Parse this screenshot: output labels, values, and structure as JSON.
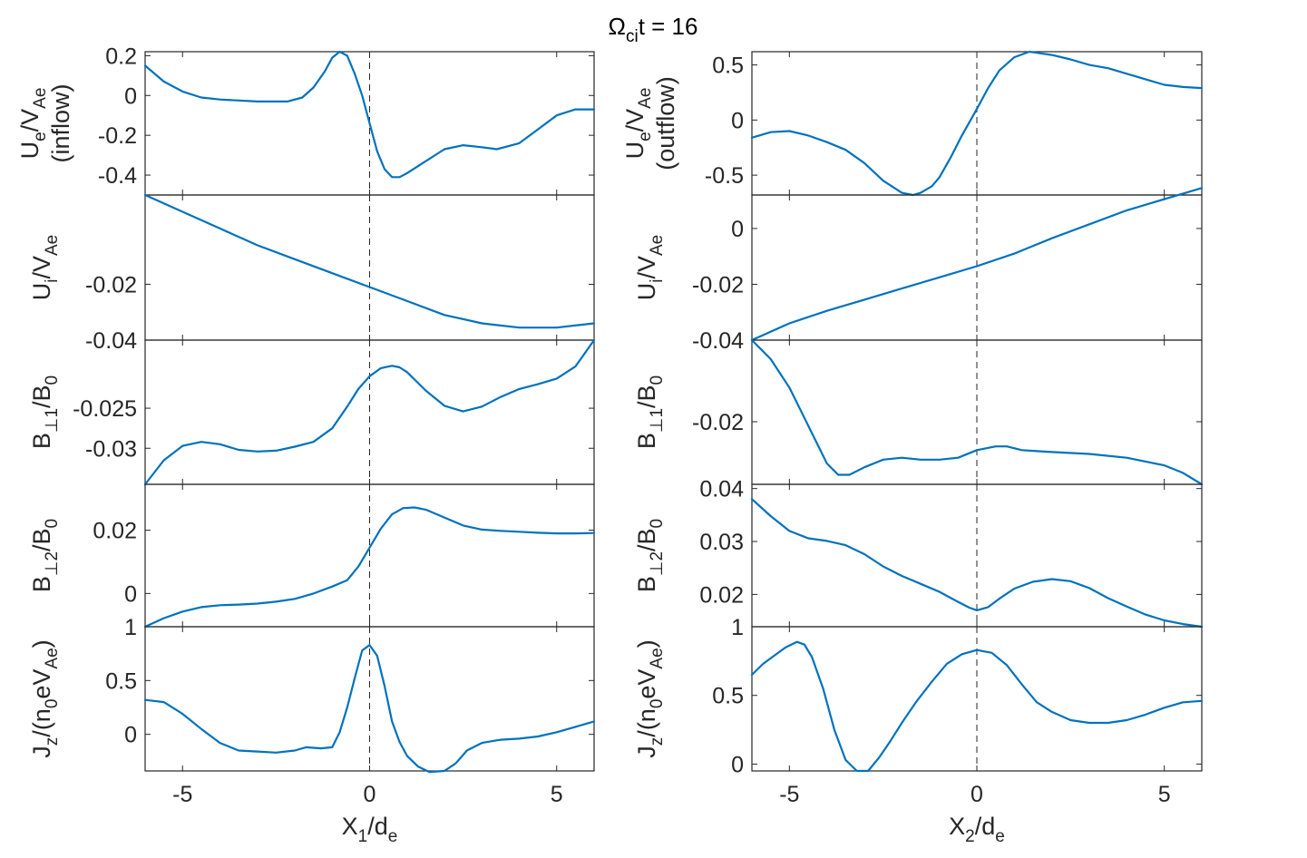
{
  "title": {
    "main": "Ω",
    "sub": "ci",
    "rest": "t = 16"
  },
  "chart_data": [
    {
      "type": "line",
      "column": "left",
      "row": 0,
      "ylabel": {
        "line1_parts": [
          "U",
          "e",
          "/V",
          "Ae"
        ],
        "line2": "(inflow)"
      },
      "xlim": [
        -6,
        6
      ],
      "ylim": [
        -0.5,
        0.22
      ],
      "yticks": [
        0.2,
        0,
        -0.2,
        -0.4
      ],
      "ytick_labels": [
        "0.2",
        "0",
        "-0.2",
        "-0.4"
      ],
      "vline_x": 0,
      "series": [
        {
          "color": "#0072BD",
          "x": [
            -6,
            -5.5,
            -5,
            -4.5,
            -4,
            -3,
            -2.2,
            -1.8,
            -1.5,
            -1.2,
            -1,
            -0.8,
            -0.6,
            -0.4,
            -0.2,
            0,
            0.2,
            0.4,
            0.6,
            0.8,
            1,
            1.5,
            2,
            2.5,
            3,
            3.4,
            4,
            4.5,
            5,
            5.5,
            6
          ],
          "y": [
            0.15,
            0.07,
            0.02,
            -0.01,
            -0.02,
            -0.03,
            -0.03,
            -0.01,
            0.04,
            0.12,
            0.19,
            0.22,
            0.2,
            0.11,
            0.0,
            -0.14,
            -0.28,
            -0.37,
            -0.41,
            -0.41,
            -0.39,
            -0.33,
            -0.27,
            -0.25,
            -0.26,
            -0.27,
            -0.24,
            -0.17,
            -0.1,
            -0.07,
            -0.07
          ]
        }
      ]
    },
    {
      "type": "line",
      "column": "right",
      "row": 0,
      "ylabel": {
        "line1_parts": [
          "U",
          "e",
          "/V",
          "Ae"
        ],
        "line2": "(outflow)"
      },
      "xlim": [
        -6,
        6
      ],
      "ylim": [
        -0.68,
        0.62
      ],
      "yticks": [
        0.5,
        0,
        -0.5
      ],
      "ytick_labels": [
        "0.5",
        "0",
        "-0.5"
      ],
      "vline_x": 0,
      "series": [
        {
          "color": "#0072BD",
          "x": [
            -6,
            -5.5,
            -5,
            -4.5,
            -4,
            -3.5,
            -3,
            -2.5,
            -2,
            -1.7,
            -1.5,
            -1.2,
            -1,
            -0.7,
            -0.4,
            0,
            0.3,
            0.6,
            1,
            1.4,
            2,
            2.5,
            3,
            3.5,
            4,
            4.5,
            5,
            5.5,
            6
          ],
          "y": [
            -0.16,
            -0.11,
            -0.1,
            -0.14,
            -0.2,
            -0.27,
            -0.39,
            -0.55,
            -0.66,
            -0.68,
            -0.66,
            -0.6,
            -0.52,
            -0.34,
            -0.14,
            0.1,
            0.29,
            0.45,
            0.57,
            0.62,
            0.59,
            0.55,
            0.5,
            0.47,
            0.42,
            0.37,
            0.32,
            0.3,
            0.29
          ]
        }
      ]
    },
    {
      "type": "line",
      "column": "left",
      "row": 1,
      "ylabel": {
        "line1_parts": [
          "U",
          "i",
          "/V",
          "Ae"
        ]
      },
      "xlim": [
        -6,
        6
      ],
      "ylim": [
        -0.04,
        0.012
      ],
      "yticks": [
        -0.02,
        -0.04
      ],
      "ytick_labels": [
        "-0.02",
        "-0.04"
      ],
      "vline_x": 0,
      "series": [
        {
          "color": "#0072BD",
          "x": [
            -6,
            -5,
            -4,
            -3,
            -2,
            -1,
            0,
            1,
            2,
            3,
            4,
            5,
            6
          ],
          "y": [
            0.012,
            0.006,
            0.0,
            -0.006,
            -0.011,
            -0.016,
            -0.021,
            -0.026,
            -0.031,
            -0.034,
            -0.0355,
            -0.0355,
            -0.034
          ]
        }
      ]
    },
    {
      "type": "line",
      "column": "right",
      "row": 1,
      "ylabel": {
        "line1_parts": [
          "U",
          "i",
          "/V",
          "Ae"
        ]
      },
      "xlim": [
        -6,
        6
      ],
      "ylim": [
        -0.04,
        0.012
      ],
      "yticks": [
        0,
        -0.02,
        -0.04
      ],
      "ytick_labels": [
        "0",
        "-0.02",
        "-0.04"
      ],
      "vline_x": 0,
      "series": [
        {
          "color": "#0072BD",
          "x": [
            -6,
            -5,
            -4,
            -3,
            -2,
            -1,
            0,
            1,
            2,
            3,
            4,
            5,
            6
          ],
          "y": [
            -0.04,
            -0.034,
            -0.0295,
            -0.0255,
            -0.0215,
            -0.0175,
            -0.0135,
            -0.009,
            -0.0035,
            0.0015,
            0.0065,
            0.0105,
            0.0145
          ]
        }
      ]
    },
    {
      "type": "line",
      "column": "left",
      "row": 2,
      "ylabel": {
        "line1_parts": [
          "B",
          "⊥1",
          "/B",
          "0"
        ]
      },
      "xlim": [
        -6,
        6
      ],
      "ylim": [
        -0.0345,
        -0.0165
      ],
      "yticks": [
        -0.025,
        -0.03
      ],
      "ytick_labels": [
        "-0.025",
        "-0.03"
      ],
      "vline_x": 0,
      "series": [
        {
          "color": "#0072BD",
          "x": [
            -6,
            -5.5,
            -5,
            -4.5,
            -4,
            -3.5,
            -3,
            -2.5,
            -2,
            -1.5,
            -1,
            -0.6,
            -0.3,
            0,
            0.3,
            0.6,
            0.8,
            1,
            1.5,
            2,
            2.5,
            3,
            3.5,
            4,
            4.5,
            5,
            5.5,
            6
          ],
          "y": [
            -0.0345,
            -0.0315,
            -0.0297,
            -0.0292,
            -0.0295,
            -0.0302,
            -0.0304,
            -0.0303,
            -0.0298,
            -0.0292,
            -0.0275,
            -0.0248,
            -0.0226,
            -0.021,
            -0.02,
            -0.0197,
            -0.0199,
            -0.0205,
            -0.0228,
            -0.0247,
            -0.0254,
            -0.0248,
            -0.0236,
            -0.0226,
            -0.022,
            -0.0213,
            -0.0198,
            -0.0165
          ]
        }
      ]
    },
    {
      "type": "line",
      "column": "right",
      "row": 2,
      "ylabel": {
        "line1_parts": [
          "B",
          "⊥1",
          "/B",
          "0"
        ]
      },
      "xlim": [
        -6,
        6
      ],
      "ylim": [
        -0.0233,
        -0.0157
      ],
      "yticks": [
        -0.02
      ],
      "ytick_labels": [
        "-0.02"
      ],
      "vline_x": 0,
      "series": [
        {
          "color": "#0072BD",
          "x": [
            -6,
            -5.5,
            -5,
            -4.5,
            -4,
            -3.7,
            -3.4,
            -3,
            -2.5,
            -2,
            -1.5,
            -1,
            -0.5,
            0,
            0.5,
            0.8,
            1.2,
            2,
            3,
            4,
            5,
            5.5,
            6
          ],
          "y": [
            -0.0157,
            -0.0167,
            -0.0182,
            -0.0202,
            -0.0222,
            -0.0228,
            -0.0228,
            -0.0224,
            -0.022,
            -0.0219,
            -0.022,
            -0.022,
            -0.0219,
            -0.0215,
            -0.0213,
            -0.0213,
            -0.0215,
            -0.0216,
            -0.0217,
            -0.0219,
            -0.0223,
            -0.0227,
            -0.0233
          ]
        }
      ]
    },
    {
      "type": "line",
      "column": "left",
      "row": 3,
      "ylabel": {
        "line1_parts": [
          "B",
          "⊥2",
          "/B",
          "0"
        ]
      },
      "xlim": [
        -6,
        6
      ],
      "ylim": [
        -0.0105,
        0.0345
      ],
      "yticks": [
        0.02,
        0
      ],
      "ytick_labels": [
        "0.02",
        "0"
      ],
      "vline_x": 0,
      "series": [
        {
          "color": "#0072BD",
          "x": [
            -6,
            -5.5,
            -5,
            -4.5,
            -4,
            -3.5,
            -3,
            -2.5,
            -2,
            -1.5,
            -1,
            -0.6,
            -0.3,
            0,
            0.3,
            0.6,
            0.9,
            1.2,
            1.5,
            2,
            2.5,
            3,
            3.5,
            4,
            4.5,
            5,
            5.5,
            6
          ],
          "y": [
            -0.0105,
            -0.0078,
            -0.0057,
            -0.0043,
            -0.0037,
            -0.0035,
            -0.0032,
            -0.0026,
            -0.0017,
            0.0,
            0.0022,
            0.0042,
            0.0085,
            0.0145,
            0.0205,
            0.025,
            0.027,
            0.0272,
            0.0265,
            0.024,
            0.0215,
            0.0202,
            0.0198,
            0.0195,
            0.0192,
            0.019,
            0.019,
            0.0191
          ]
        }
      ]
    },
    {
      "type": "line",
      "column": "right",
      "row": 3,
      "ylabel": {
        "line1_parts": [
          "B",
          "⊥2",
          "/B",
          "0"
        ]
      },
      "xlim": [
        -6,
        6
      ],
      "ylim": [
        0.0139,
        0.0408
      ],
      "yticks": [
        0.04,
        0.03,
        0.02
      ],
      "ytick_labels": [
        "0.04",
        "0.03",
        "0.02"
      ],
      "vline_x": 0,
      "series": [
        {
          "color": "#0072BD",
          "x": [
            -6,
            -5.5,
            -5,
            -4.5,
            -4,
            -3.5,
            -3,
            -2.5,
            -2,
            -1.5,
            -1,
            -0.5,
            -0.2,
            0,
            0.3,
            0.6,
            1,
            1.5,
            2,
            2.5,
            3,
            3.5,
            4,
            4.5,
            5,
            5.5,
            6
          ],
          "y": [
            0.038,
            0.0348,
            0.032,
            0.0306,
            0.0301,
            0.0293,
            0.0276,
            0.0253,
            0.0235,
            0.022,
            0.0205,
            0.0186,
            0.0175,
            0.017,
            0.0176,
            0.0192,
            0.0211,
            0.0224,
            0.0229,
            0.0225,
            0.0212,
            0.0193,
            0.0177,
            0.0162,
            0.0151,
            0.0144,
            0.0139
          ]
        }
      ]
    },
    {
      "type": "line",
      "column": "left",
      "row": 4,
      "ylabel": {
        "line1_parts": [
          "J",
          "z",
          "/(n",
          "0",
          "eV",
          "Ae",
          ")"
        ]
      },
      "xlim": [
        -6,
        6
      ],
      "ylim": [
        -0.34,
        1.0
      ],
      "yticks": [
        1,
        0.5,
        0
      ],
      "ytick_labels": [
        "1",
        "0.5",
        "0"
      ],
      "vline_x": 0,
      "series": [
        {
          "color": "#0072BD",
          "x": [
            -6,
            -5.5,
            -5,
            -4.5,
            -4,
            -3.5,
            -3,
            -2.5,
            -2,
            -1.7,
            -1.3,
            -1,
            -0.8,
            -0.6,
            -0.4,
            -0.2,
            0,
            0.2,
            0.4,
            0.6,
            0.8,
            1,
            1.3,
            1.6,
            2,
            2.3,
            2.6,
            3,
            3.5,
            4,
            4.5,
            5,
            5.5,
            6
          ],
          "y": [
            0.32,
            0.3,
            0.19,
            0.05,
            -0.08,
            -0.15,
            -0.16,
            -0.17,
            -0.15,
            -0.12,
            -0.13,
            -0.12,
            0.02,
            0.25,
            0.52,
            0.78,
            0.83,
            0.73,
            0.45,
            0.12,
            -0.07,
            -0.2,
            -0.3,
            -0.35,
            -0.34,
            -0.27,
            -0.15,
            -0.08,
            -0.05,
            -0.04,
            -0.02,
            0.02,
            0.07,
            0.12
          ]
        }
      ]
    },
    {
      "type": "line",
      "column": "right",
      "row": 4,
      "ylabel": {
        "line1_parts": [
          "J",
          "z",
          "/(n",
          "0",
          "eV",
          "Ae",
          ")"
        ]
      },
      "xlim": [
        -6,
        6
      ],
      "ylim": [
        -0.05,
        1.0
      ],
      "yticks": [
        1,
        0.5,
        0
      ],
      "ytick_labels": [
        "1",
        "0.5",
        "0"
      ],
      "vline_x": 0,
      "series": [
        {
          "color": "#0072BD",
          "x": [
            -6,
            -5.7,
            -5.4,
            -5.1,
            -4.8,
            -4.6,
            -4.4,
            -4.1,
            -3.8,
            -3.5,
            -3.2,
            -2.9,
            -2.6,
            -2.3,
            -2,
            -1.6,
            -1.2,
            -0.8,
            -0.4,
            0,
            0.4,
            0.8,
            1.2,
            1.6,
            2,
            2.5,
            3,
            3.5,
            4,
            4.5,
            5,
            5.5,
            6
          ],
          "y": [
            0.65,
            0.73,
            0.79,
            0.85,
            0.89,
            0.87,
            0.78,
            0.55,
            0.25,
            0.03,
            -0.05,
            -0.05,
            0.05,
            0.17,
            0.3,
            0.46,
            0.6,
            0.73,
            0.8,
            0.83,
            0.81,
            0.72,
            0.58,
            0.45,
            0.38,
            0.32,
            0.3,
            0.3,
            0.32,
            0.36,
            0.41,
            0.45,
            0.46
          ]
        }
      ]
    }
  ],
  "xaxes": [
    {
      "column": "left",
      "label_parts": [
        "X",
        "1",
        "/d",
        "e"
      ],
      "xticks": [
        -5,
        0,
        5
      ],
      "xtick_labels": [
        "-5",
        "0",
        "5"
      ]
    },
    {
      "column": "right",
      "label_parts": [
        "X",
        "2",
        "/d",
        "e"
      ],
      "xticks": [
        -5,
        0,
        5
      ],
      "xtick_labels": [
        "-5",
        "0",
        "5"
      ]
    }
  ]
}
